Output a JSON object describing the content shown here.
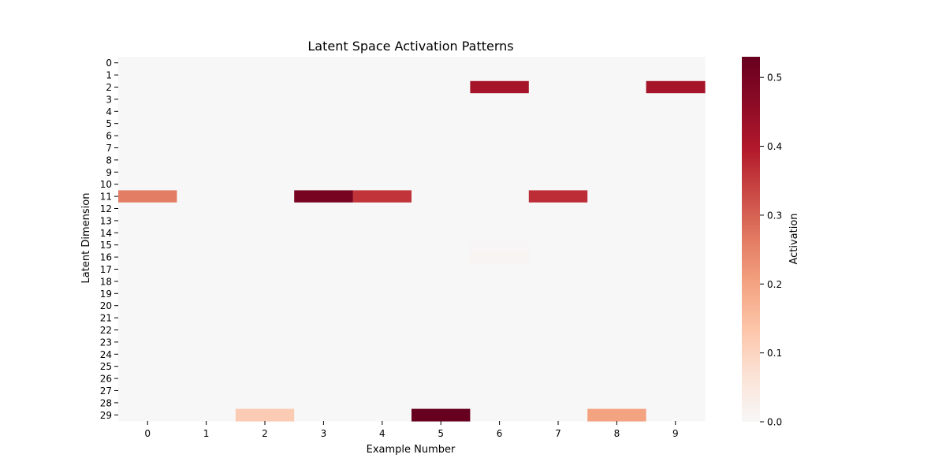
{
  "chart_data": {
    "type": "heatmap",
    "title": "Latent Space Activation Patterns",
    "xlabel": "Example Number",
    "ylabel": "Latent Dimension",
    "x_categories": [
      "0",
      "1",
      "2",
      "3",
      "4",
      "5",
      "6",
      "7",
      "8",
      "9"
    ],
    "y_categories": [
      "0",
      "1",
      "2",
      "3",
      "4",
      "5",
      "6",
      "7",
      "8",
      "9",
      "10",
      "11",
      "12",
      "13",
      "14",
      "15",
      "16",
      "17",
      "18",
      "19",
      "20",
      "21",
      "22",
      "23",
      "24",
      "25",
      "26",
      "27",
      "28",
      "29"
    ],
    "background_value": 0,
    "cells": [
      {
        "x": 6,
        "y": 2,
        "value": 0.42
      },
      {
        "x": 9,
        "y": 2,
        "value": 0.42
      },
      {
        "x": 0,
        "y": 11,
        "value": 0.26
      },
      {
        "x": 3,
        "y": 11,
        "value": 0.5
      },
      {
        "x": 4,
        "y": 11,
        "value": 0.36
      },
      {
        "x": 7,
        "y": 11,
        "value": 0.37
      },
      {
        "x": 6,
        "y": 15,
        "value": 0.005
      },
      {
        "x": 6,
        "y": 16,
        "value": 0.01
      },
      {
        "x": 2,
        "y": 29,
        "value": 0.12
      },
      {
        "x": 5,
        "y": 29,
        "value": 0.53
      },
      {
        "x": 8,
        "y": 29,
        "value": 0.2
      }
    ],
    "colorbar": {
      "label": "Activation",
      "min": 0,
      "max": 0.53,
      "ticks": [
        "0.0",
        "0.1",
        "0.2",
        "0.3",
        "0.4",
        "0.5"
      ],
      "colormap": "RdBu_r (upper half)",
      "colors": [
        "#f7f7f7",
        "#fbe3d6",
        "#fcc6ab",
        "#f4a482",
        "#e27b62",
        "#ca4a45",
        "#b2182b",
        "#8b0b25",
        "#67001f"
      ]
    }
  }
}
